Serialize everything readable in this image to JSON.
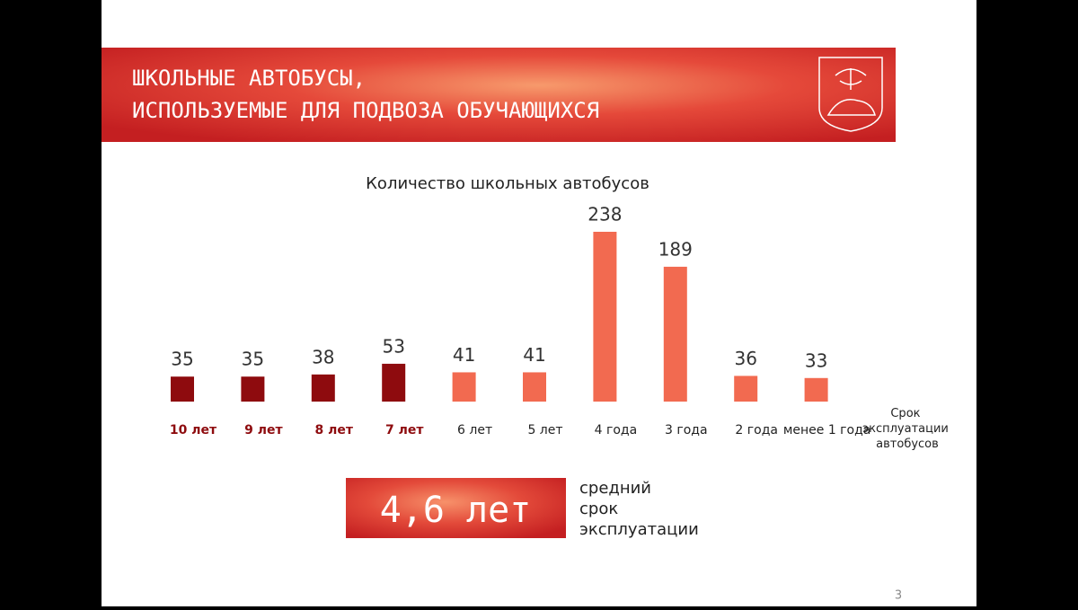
{
  "header": {
    "title_lines": [
      "ШКОЛЬНЫЕ АВТОБУСЫ,",
      "ИСПОЛЬЗУЕМЫЕ ДЛЯ ПОДВОЗА ОБУЧАЮЩИХСЯ"
    ]
  },
  "chart_data": {
    "type": "bar",
    "title": "Количество школьных автобусов",
    "categories": [
      "10 лет",
      "9 лет",
      "8 лет",
      "7 лет",
      "6 лет",
      "5 лет",
      "4 года",
      "3 года",
      "2 года",
      "менее 1 года"
    ],
    "values": [
      35,
      35,
      38,
      53,
      41,
      41,
      238,
      189,
      36,
      33
    ],
    "colors": [
      "#8e0b0e",
      "#8e0b0e",
      "#8e0b0e",
      "#8e0b0e",
      "#f26a50",
      "#f26a50",
      "#f26a50",
      "#f26a50",
      "#f26a50",
      "#f26a50"
    ],
    "x_label": "Срок эксплуатации автобусов"
  },
  "summary": {
    "value": "4,6 лет",
    "caption_lines": [
      "средний",
      "срок",
      "эксплуатации"
    ]
  },
  "page_number": "3"
}
